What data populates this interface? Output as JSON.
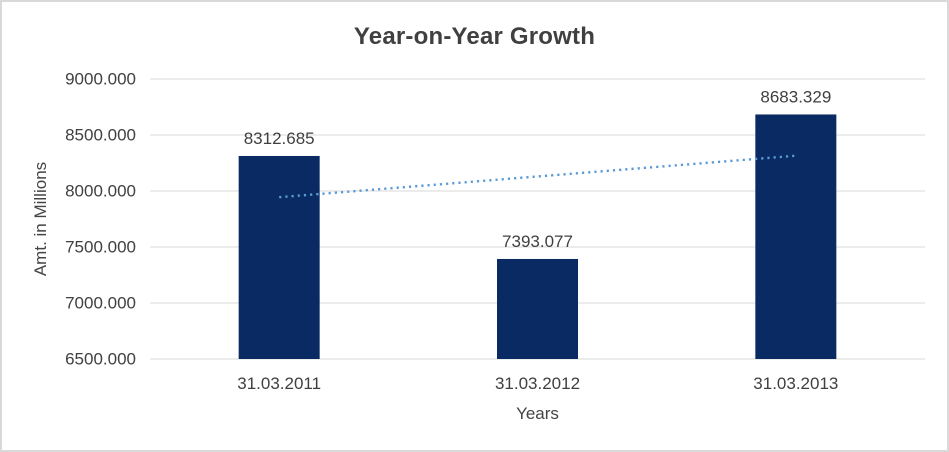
{
  "frame": {
    "background": "#ffffff",
    "border_color": "#d9d9d9"
  },
  "chart_data": {
    "type": "bar",
    "title": "Year-on-Year Growth",
    "xlabel": "Years",
    "ylabel": "Amt. in Millions",
    "categories": [
      "31.03.2011",
      "31.03.2012",
      "31.03.2013"
    ],
    "values": [
      8312.685,
      7393.077,
      8683.329
    ],
    "data_labels": [
      "8312.685",
      "7393.077",
      "8683.329"
    ],
    "ylim": [
      6500,
      9000
    ],
    "y_tick_step": 500,
    "y_ticks": [
      {
        "value": 6500,
        "label": "6500.000"
      },
      {
        "value": 7000,
        "label": "7000.000"
      },
      {
        "value": 7500,
        "label": "7500.000"
      },
      {
        "value": 8000,
        "label": "8000.000"
      },
      {
        "value": 8500,
        "label": "8500.000"
      },
      {
        "value": 9000,
        "label": "9000.000"
      }
    ],
    "grid": true,
    "legend": "none",
    "colors": {
      "bar": "#0a2a63",
      "gridline": "#d9d9d9",
      "text": "#404040",
      "title": "#404040"
    },
    "trendline": {
      "type": "linear",
      "style": "dotted",
      "color": "#5b9bd5"
    }
  }
}
